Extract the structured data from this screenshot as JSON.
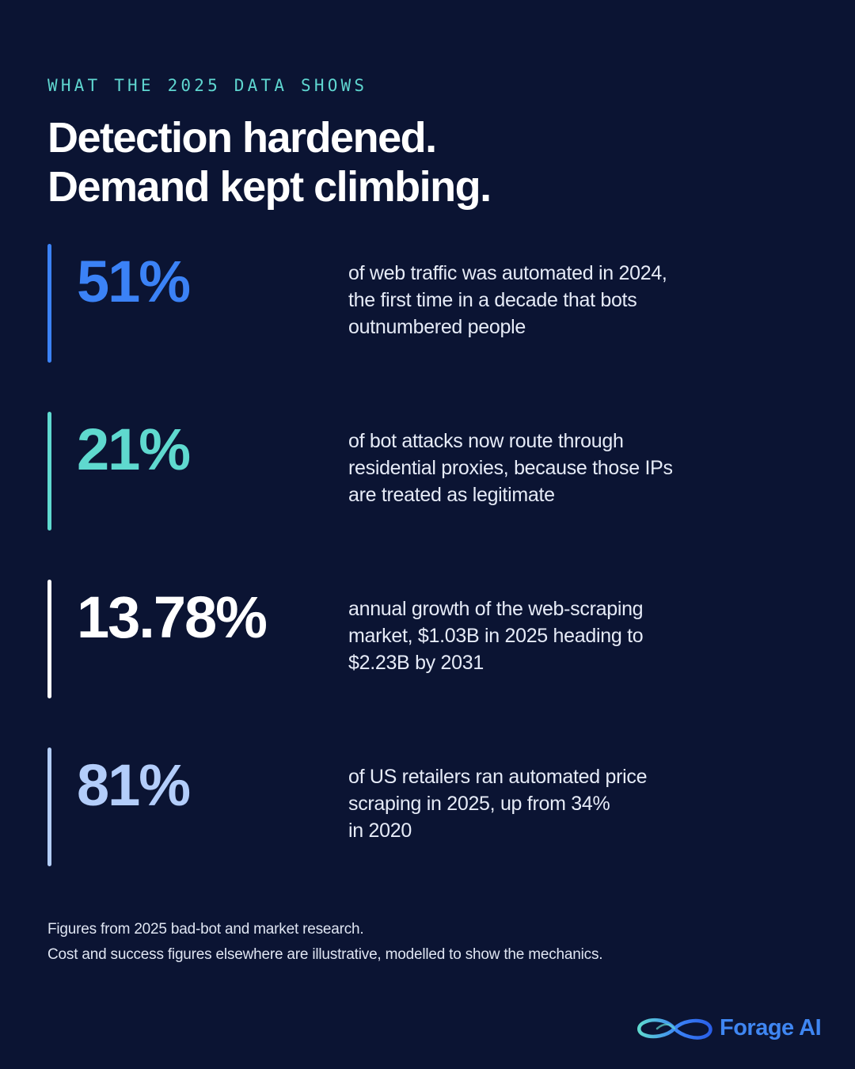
{
  "eyebrow": "WHAT THE 2025 DATA SHOWS",
  "headline": {
    "line1": "Detection hardened.",
    "line2": "Demand kept climbing."
  },
  "stats": [
    {
      "value": "51%",
      "color": "#3b82f6",
      "lines": [
        "of web traffic was automated in 2024,",
        "the first time in a decade that bots",
        "outnumbered people"
      ]
    },
    {
      "value": "21%",
      "color": "#5fd9cf",
      "lines": [
        "of bot attacks now route through",
        "residential proxies, because those IPs",
        "are treated as legitimate"
      ]
    },
    {
      "value": "13.78%",
      "color": "#ffffff",
      "lines": [
        "annual growth of the web-scraping",
        "market, $1.03B in 2025 heading to",
        "$2.23B by 2031"
      ]
    },
    {
      "value": "81%",
      "color": "#b3cdfa",
      "lines": [
        "of US retailers ran automated price",
        "scraping in 2025, up from 34%",
        "in 2020"
      ]
    }
  ],
  "footnote": {
    "line1": "Figures from 2025 bad-bot and market research.",
    "line2": "Cost and success figures elsewhere are illustrative, modelled to show the mechanics."
  },
  "brand": {
    "name": "Forage AI",
    "icon": "infinity-logo-icon",
    "color": "#3f86f2"
  }
}
